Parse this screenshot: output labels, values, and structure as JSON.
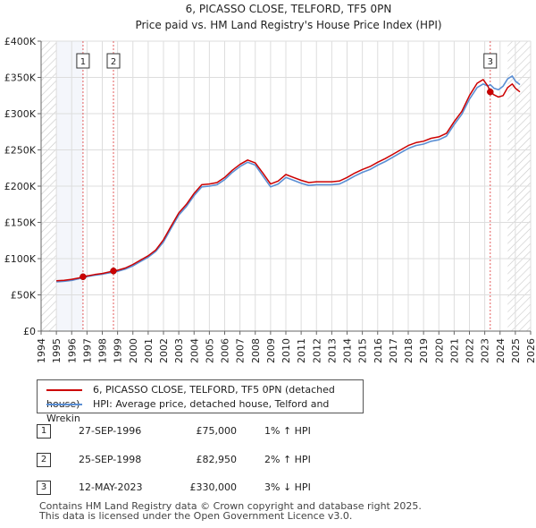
{
  "chart_data": {
    "type": "line",
    "title": "6, PICASSO CLOSE, TELFORD, TF5 0PN",
    "subtitle": "Price paid vs. HM Land Registry's House Price Index (HPI)",
    "xlim": [
      1994,
      2026
    ],
    "ylim": [
      0,
      400000
    ],
    "x_ticks": [
      "1994",
      "1995",
      "1996",
      "1997",
      "1998",
      "1999",
      "2000",
      "2001",
      "2002",
      "2003",
      "2004",
      "2005",
      "2006",
      "2007",
      "2008",
      "2009",
      "2010",
      "2011",
      "2012",
      "2013",
      "2014",
      "2015",
      "2016",
      "2017",
      "2018",
      "2019",
      "2020",
      "2021",
      "2022",
      "2023",
      "2024",
      "2025",
      "2026"
    ],
    "y_ticks": [
      {
        "value": 0,
        "label": "£0"
      },
      {
        "value": 50000,
        "label": "£50K"
      },
      {
        "value": 100000,
        "label": "£100K"
      },
      {
        "value": 150000,
        "label": "£150K"
      },
      {
        "value": 200000,
        "label": "£200K"
      },
      {
        "value": 250000,
        "label": "£250K"
      },
      {
        "value": 300000,
        "label": "£300K"
      },
      {
        "value": 350000,
        "label": "£350K"
      },
      {
        "value": 400000,
        "label": "£400K"
      }
    ],
    "data_start": 1995.0,
    "data_end": 2025.5,
    "hatched_before": 1995.0,
    "hatched_after": 2024.5,
    "sales_markers": [
      {
        "label": "1",
        "x": 1996.74,
        "value": 75000
      },
      {
        "label": "2",
        "x": 1998.73,
        "value": 82950
      },
      {
        "label": "3",
        "x": 2023.36,
        "value": 330000
      }
    ],
    "series": [
      {
        "name": "6, PICASSO CLOSE, TELFORD, TF5 0PN (detached house)",
        "color": "#cc0000",
        "points": [
          [
            1995.0,
            69500
          ],
          [
            1995.5,
            70000
          ],
          [
            1996.0,
            71500
          ],
          [
            1996.5,
            73500
          ],
          [
            1996.74,
            75000
          ],
          [
            1997.0,
            76000
          ],
          [
            1997.5,
            78000
          ],
          [
            1998.0,
            79500
          ],
          [
            1998.73,
            82950
          ],
          [
            1999.0,
            84000
          ],
          [
            1999.5,
            87000
          ],
          [
            2000.0,
            92000
          ],
          [
            2000.5,
            98000
          ],
          [
            2001.0,
            104000
          ],
          [
            2001.5,
            112000
          ],
          [
            2002.0,
            126000
          ],
          [
            2002.5,
            145000
          ],
          [
            2003.0,
            163000
          ],
          [
            2003.5,
            175000
          ],
          [
            2004.0,
            190000
          ],
          [
            2004.5,
            202000
          ],
          [
            2005.0,
            203000
          ],
          [
            2005.5,
            205000
          ],
          [
            2006.0,
            212000
          ],
          [
            2006.5,
            222000
          ],
          [
            2007.0,
            230000
          ],
          [
            2007.5,
            236000
          ],
          [
            2008.0,
            232000
          ],
          [
            2008.5,
            218000
          ],
          [
            2009.0,
            203000
          ],
          [
            2009.5,
            207000
          ],
          [
            2010.0,
            216000
          ],
          [
            2010.5,
            212000
          ],
          [
            2011.0,
            208000
          ],
          [
            2011.5,
            205000
          ],
          [
            2012.0,
            206000
          ],
          [
            2012.5,
            206000
          ],
          [
            2013.0,
            206000
          ],
          [
            2013.5,
            207000
          ],
          [
            2014.0,
            212000
          ],
          [
            2014.5,
            218000
          ],
          [
            2015.0,
            223000
          ],
          [
            2015.5,
            227000
          ],
          [
            2016.0,
            233000
          ],
          [
            2016.5,
            238000
          ],
          [
            2017.0,
            244000
          ],
          [
            2017.5,
            250000
          ],
          [
            2018.0,
            256000
          ],
          [
            2018.5,
            260000
          ],
          [
            2019.0,
            262000
          ],
          [
            2019.5,
            266000
          ],
          [
            2020.0,
            268000
          ],
          [
            2020.5,
            273000
          ],
          [
            2021.0,
            289000
          ],
          [
            2021.5,
            303000
          ],
          [
            2022.0,
            325000
          ],
          [
            2022.5,
            342000
          ],
          [
            2022.9,
            347000
          ],
          [
            2023.2,
            338000
          ],
          [
            2023.36,
            330000
          ],
          [
            2023.6,
            326000
          ],
          [
            2023.9,
            323000
          ],
          [
            2024.2,
            325000
          ],
          [
            2024.5,
            336000
          ],
          [
            2024.8,
            341000
          ],
          [
            2025.0,
            335000
          ],
          [
            2025.3,
            330000
          ]
        ]
      },
      {
        "name": "HPI: Average price, detached house, Telford and Wrekin",
        "color": "#5b8fd4",
        "points": [
          [
            1995.0,
            68000
          ],
          [
            1995.5,
            68800
          ],
          [
            1996.0,
            70000
          ],
          [
            1996.5,
            72500
          ],
          [
            1996.74,
            74200
          ],
          [
            1997.0,
            75200
          ],
          [
            1997.5,
            77000
          ],
          [
            1998.0,
            78500
          ],
          [
            1998.73,
            81300
          ],
          [
            1999.0,
            82500
          ],
          [
            1999.5,
            85500
          ],
          [
            2000.0,
            90000
          ],
          [
            2000.5,
            96000
          ],
          [
            2001.0,
            102000
          ],
          [
            2001.5,
            110000
          ],
          [
            2002.0,
            123000
          ],
          [
            2002.5,
            142000
          ],
          [
            2003.0,
            160000
          ],
          [
            2003.5,
            172000
          ],
          [
            2004.0,
            187000
          ],
          [
            2004.5,
            199000
          ],
          [
            2005.0,
            200000
          ],
          [
            2005.5,
            202000
          ],
          [
            2006.0,
            209000
          ],
          [
            2006.5,
            219000
          ],
          [
            2007.0,
            227000
          ],
          [
            2007.5,
            233000
          ],
          [
            2008.0,
            229000
          ],
          [
            2008.5,
            214000
          ],
          [
            2009.0,
            199000
          ],
          [
            2009.5,
            203000
          ],
          [
            2010.0,
            212000
          ],
          [
            2010.5,
            208000
          ],
          [
            2011.0,
            204000
          ],
          [
            2011.5,
            201000
          ],
          [
            2012.0,
            202000
          ],
          [
            2012.5,
            202000
          ],
          [
            2013.0,
            202000
          ],
          [
            2013.5,
            203000
          ],
          [
            2014.0,
            208000
          ],
          [
            2014.5,
            214000
          ],
          [
            2015.0,
            219000
          ],
          [
            2015.5,
            223000
          ],
          [
            2016.0,
            229000
          ],
          [
            2016.5,
            234000
          ],
          [
            2017.0,
            240000
          ],
          [
            2017.5,
            246000
          ],
          [
            2018.0,
            252000
          ],
          [
            2018.5,
            256000
          ],
          [
            2019.0,
            258000
          ],
          [
            2019.5,
            262000
          ],
          [
            2020.0,
            264000
          ],
          [
            2020.5,
            269000
          ],
          [
            2021.0,
            285000
          ],
          [
            2021.5,
            299000
          ],
          [
            2022.0,
            320000
          ],
          [
            2022.5,
            336000
          ],
          [
            2022.9,
            341000
          ],
          [
            2023.2,
            338000
          ],
          [
            2023.36,
            340000
          ],
          [
            2023.6,
            335000
          ],
          [
            2023.9,
            333000
          ],
          [
            2024.2,
            338000
          ],
          [
            2024.5,
            348000
          ],
          [
            2024.8,
            352000
          ],
          [
            2025.0,
            345000
          ],
          [
            2025.3,
            340000
          ]
        ]
      }
    ]
  },
  "legend": [
    {
      "label": "6, PICASSO CLOSE, TELFORD, TF5 0PN (detached house)",
      "color": "#cc0000"
    },
    {
      "label": "HPI: Average price, detached house, Telford and Wrekin",
      "color": "#5b8fd4"
    }
  ],
  "sales": [
    {
      "num": "1",
      "date": "27-SEP-1996",
      "price": "£75,000",
      "hpi": "1% ↑ HPI"
    },
    {
      "num": "2",
      "date": "25-SEP-1998",
      "price": "£82,950",
      "hpi": "2% ↑ HPI"
    },
    {
      "num": "3",
      "date": "12-MAY-2023",
      "price": "£330,000",
      "hpi": "3% ↓ HPI"
    }
  ],
  "footer": {
    "line1": "Contains HM Land Registry data © Crown copyright and database right 2025.",
    "line2": "This data is licensed under the Open Government Licence v3.0."
  }
}
